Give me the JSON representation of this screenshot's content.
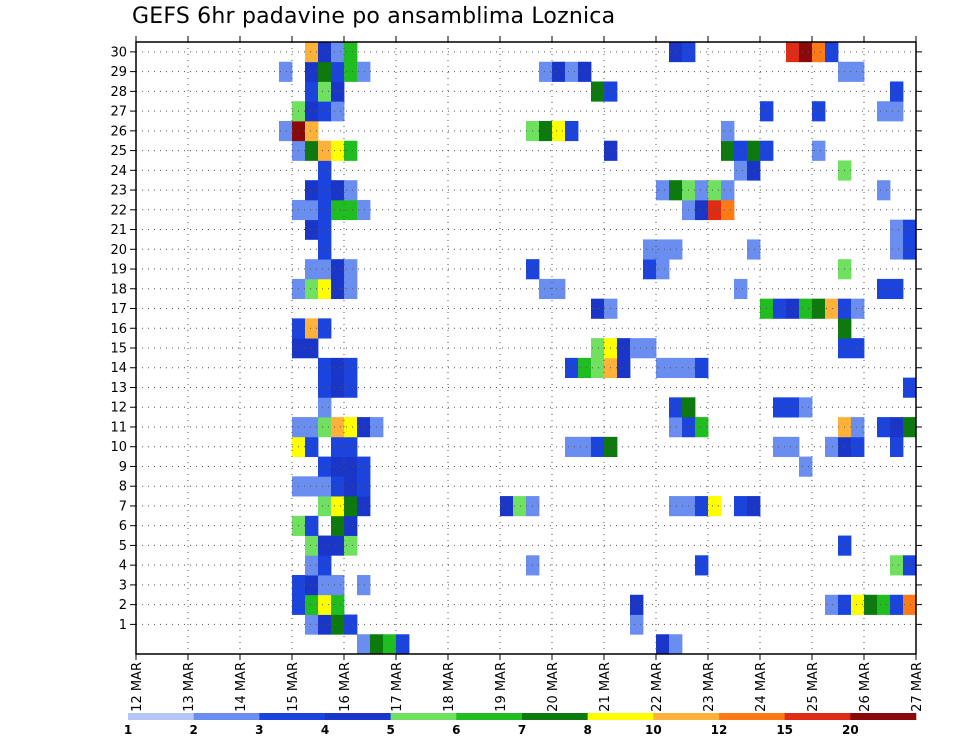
{
  "chart_data": {
    "type": "heatmap",
    "title": "GEFS 6hr padavine po ansamblima Loznica",
    "xlabel": "",
    "ylabel": "",
    "x_ticks": [
      "12 MAR",
      "13 MAR",
      "14 MAR",
      "15 MAR",
      "16 MAR",
      "17 MAR",
      "18 MAR",
      "19 MAR",
      "20 MAR",
      "21 MAR",
      "22 MAR",
      "23 MAR",
      "24 MAR",
      "25 MAR",
      "26 MAR",
      "27 MAR"
    ],
    "x_range_days": [
      0,
      15
    ],
    "y_ticks": [
      1,
      2,
      3,
      4,
      5,
      6,
      7,
      8,
      9,
      10,
      11,
      12,
      13,
      14,
      15,
      16,
      17,
      18,
      19,
      20,
      21,
      22,
      23,
      24,
      25,
      26,
      27,
      28,
      29,
      30
    ],
    "y_range": [
      0,
      30
    ],
    "time_step_hours": 6,
    "grid": "dotted",
    "colorbar": {
      "position": "bottom",
      "levels": [
        "1",
        "2",
        "3",
        "4",
        "5",
        "6",
        "7",
        "8",
        "10",
        "12",
        "15",
        "20"
      ],
      "colors": [
        "#b3c6f5",
        "#6a8ef0",
        "#1a44dd",
        "#1936c8",
        "#70e060",
        "#1fbd1f",
        "#0c7a0c",
        "#ffff00",
        "#ffb23a",
        "#ff7a14",
        "#e02c14",
        "#8a0a0a"
      ]
    },
    "series": [
      {
        "y": 0,
        "cells": [
          [
            16.25,
            1
          ],
          [
            16.5,
            6
          ],
          [
            16.75,
            5
          ],
          [
            17.0,
            2
          ],
          [
            22.0,
            3
          ],
          [
            22.25,
            1
          ]
        ]
      },
      {
        "y": 1,
        "cells": [
          [
            15.25,
            1
          ],
          [
            15.5,
            3
          ],
          [
            15.75,
            6
          ],
          [
            16.0,
            2
          ],
          [
            21.5,
            1
          ]
        ]
      },
      {
        "y": 2,
        "cells": [
          [
            15.0,
            2
          ],
          [
            15.25,
            5
          ],
          [
            15.5,
            7
          ],
          [
            15.75,
            5
          ],
          [
            21.5,
            3
          ],
          [
            25.25,
            1
          ],
          [
            25.5,
            2
          ],
          [
            25.75,
            7
          ],
          [
            26.0,
            6
          ],
          [
            26.25,
            5
          ],
          [
            26.5,
            2
          ],
          [
            26.75,
            9
          ]
        ]
      },
      {
        "y": 3,
        "cells": [
          [
            15.0,
            2
          ],
          [
            15.25,
            3
          ],
          [
            15.5,
            1
          ],
          [
            15.75,
            1
          ],
          [
            16.25,
            1
          ]
        ]
      },
      {
        "y": 4,
        "cells": [
          [
            15.25,
            1
          ],
          [
            15.5,
            2
          ],
          [
            19.5,
            1
          ],
          [
            22.75,
            2
          ],
          [
            26.5,
            4
          ],
          [
            26.75,
            2
          ]
        ]
      },
      {
        "y": 5,
        "cells": [
          [
            15.25,
            4
          ],
          [
            15.5,
            3
          ],
          [
            15.75,
            3
          ],
          [
            16.0,
            4
          ],
          [
            25.5,
            2
          ]
        ]
      },
      {
        "y": 6,
        "cells": [
          [
            15.0,
            4
          ],
          [
            15.25,
            2
          ],
          [
            15.75,
            6
          ],
          [
            16.0,
            3
          ]
        ]
      },
      {
        "y": 7,
        "cells": [
          [
            15.5,
            4
          ],
          [
            15.75,
            7
          ],
          [
            16.0,
            6
          ],
          [
            16.25,
            3
          ],
          [
            19.0,
            3
          ],
          [
            19.25,
            4
          ],
          [
            19.5,
            1
          ],
          [
            22.25,
            1
          ],
          [
            22.5,
            1
          ],
          [
            22.75,
            2
          ],
          [
            23.0,
            7
          ],
          [
            23.5,
            2
          ],
          [
            23.75,
            3
          ]
        ]
      },
      {
        "y": 8,
        "cells": [
          [
            15.0,
            1
          ],
          [
            15.25,
            1
          ],
          [
            15.5,
            1
          ],
          [
            15.75,
            2
          ],
          [
            16.0,
            3
          ],
          [
            16.25,
            2
          ]
        ]
      },
      {
        "y": 9,
        "cells": [
          [
            15.5,
            2
          ],
          [
            15.75,
            3
          ],
          [
            16.0,
            3
          ],
          [
            16.25,
            2
          ],
          [
            24.75,
            1
          ]
        ]
      },
      {
        "y": 10,
        "cells": [
          [
            15.0,
            7
          ],
          [
            15.25,
            2
          ],
          [
            15.75,
            2
          ],
          [
            16.0,
            2
          ],
          [
            20.25,
            1
          ],
          [
            20.5,
            1
          ],
          [
            20.75,
            2
          ],
          [
            21.0,
            6
          ],
          [
            24.25,
            1
          ],
          [
            24.5,
            1
          ],
          [
            25.25,
            1
          ],
          [
            25.5,
            3
          ],
          [
            25.75,
            2
          ],
          [
            26.5,
            2
          ]
        ]
      },
      {
        "y": 11,
        "cells": [
          [
            15.0,
            1
          ],
          [
            15.25,
            1
          ],
          [
            15.5,
            4
          ],
          [
            15.75,
            8
          ],
          [
            16.0,
            7
          ],
          [
            16.25,
            3
          ],
          [
            16.5,
            1
          ],
          [
            22.25,
            1
          ],
          [
            22.5,
            2
          ],
          [
            22.75,
            5
          ],
          [
            25.5,
            8
          ],
          [
            25.75,
            1
          ],
          [
            26.25,
            2
          ],
          [
            26.5,
            3
          ],
          [
            26.75,
            6
          ]
        ]
      },
      {
        "y": 12,
        "cells": [
          [
            15.5,
            1
          ],
          [
            22.25,
            2
          ],
          [
            22.5,
            6
          ],
          [
            24.25,
            2
          ],
          [
            24.5,
            2
          ],
          [
            24.75,
            1
          ]
        ]
      },
      {
        "y": 13,
        "cells": [
          [
            15.5,
            2
          ],
          [
            15.75,
            3
          ],
          [
            16.0,
            2
          ],
          [
            26.75,
            2
          ]
        ]
      },
      {
        "y": 14,
        "cells": [
          [
            15.5,
            2
          ],
          [
            15.75,
            3
          ],
          [
            16.0,
            2
          ],
          [
            20.25,
            2
          ],
          [
            20.5,
            5
          ],
          [
            20.75,
            4
          ],
          [
            21.0,
            8
          ],
          [
            21.25,
            3
          ],
          [
            22.0,
            1
          ],
          [
            22.25,
            1
          ],
          [
            22.5,
            1
          ],
          [
            22.75,
            2
          ]
        ]
      },
      {
        "y": 15,
        "cells": [
          [
            15.0,
            3
          ],
          [
            15.25,
            3
          ],
          [
            20.75,
            4
          ],
          [
            21.0,
            7
          ],
          [
            21.25,
            3
          ],
          [
            21.5,
            1
          ],
          [
            21.75,
            1
          ],
          [
            25.5,
            2
          ],
          [
            25.75,
            2
          ]
        ]
      },
      {
        "y": 16,
        "cells": [
          [
            15.0,
            2
          ],
          [
            15.25,
            8
          ],
          [
            15.5,
            2
          ],
          [
            25.5,
            6
          ]
        ]
      },
      {
        "y": 17,
        "cells": [
          [
            20.75,
            3
          ],
          [
            21.0,
            1
          ],
          [
            24.0,
            5
          ],
          [
            24.25,
            2
          ],
          [
            24.5,
            3
          ],
          [
            24.75,
            5
          ],
          [
            25.0,
            6
          ],
          [
            25.25,
            8
          ],
          [
            25.5,
            2
          ],
          [
            25.75,
            1
          ]
        ]
      },
      {
        "y": 18,
        "cells": [
          [
            15.0,
            1
          ],
          [
            15.25,
            4
          ],
          [
            15.5,
            7
          ],
          [
            15.75,
            3
          ],
          [
            16.0,
            1
          ],
          [
            19.75,
            1
          ],
          [
            20.0,
            1
          ],
          [
            23.5,
            1
          ],
          [
            26.25,
            2
          ],
          [
            26.5,
            2
          ]
        ]
      },
      {
        "y": 19,
        "cells": [
          [
            15.25,
            1
          ],
          [
            15.5,
            1
          ],
          [
            15.75,
            3
          ],
          [
            16.0,
            1
          ],
          [
            19.5,
            2
          ],
          [
            21.75,
            2
          ],
          [
            22.0,
            1
          ],
          [
            25.5,
            4
          ]
        ]
      },
      {
        "y": 20,
        "cells": [
          [
            15.5,
            2
          ],
          [
            21.75,
            1
          ],
          [
            22.0,
            1
          ],
          [
            22.25,
            1
          ],
          [
            23.75,
            1
          ],
          [
            26.5,
            1
          ],
          [
            26.75,
            2
          ]
        ]
      },
      {
        "y": 21,
        "cells": [
          [
            15.25,
            3
          ],
          [
            15.5,
            2
          ],
          [
            26.5,
            1
          ],
          [
            26.75,
            2
          ]
        ]
      },
      {
        "y": 22,
        "cells": [
          [
            15.0,
            1
          ],
          [
            15.25,
            1
          ],
          [
            15.5,
            2
          ],
          [
            15.75,
            5
          ],
          [
            16.0,
            5
          ],
          [
            16.25,
            1
          ],
          [
            22.5,
            1
          ],
          [
            22.75,
            3
          ],
          [
            23.0,
            10
          ],
          [
            23.25,
            9
          ]
        ]
      },
      {
        "y": 23,
        "cells": [
          [
            15.25,
            3
          ],
          [
            15.5,
            2
          ],
          [
            15.75,
            3
          ],
          [
            16.0,
            1
          ],
          [
            22.0,
            1
          ],
          [
            22.25,
            6
          ],
          [
            22.5,
            4
          ],
          [
            22.75,
            1
          ],
          [
            23.0,
            4
          ],
          [
            23.25,
            1
          ],
          [
            26.25,
            1
          ]
        ]
      },
      {
        "y": 24,
        "cells": [
          [
            15.5,
            2
          ],
          [
            23.5,
            1
          ],
          [
            23.75,
            3
          ],
          [
            25.5,
            4
          ]
        ]
      },
      {
        "y": 25,
        "cells": [
          [
            15.0,
            1
          ],
          [
            15.25,
            6
          ],
          [
            15.5,
            8
          ],
          [
            15.75,
            7
          ],
          [
            16.0,
            5
          ],
          [
            21.0,
            3
          ],
          [
            23.25,
            6
          ],
          [
            23.5,
            2
          ],
          [
            23.75,
            6
          ],
          [
            24.0,
            2
          ],
          [
            25.0,
            1
          ]
        ]
      },
      {
        "y": 26,
        "cells": [
          [
            14.75,
            1
          ],
          [
            15.0,
            11
          ],
          [
            15.25,
            8
          ],
          [
            19.5,
            4
          ],
          [
            19.75,
            6
          ],
          [
            20.0,
            7
          ],
          [
            20.25,
            2
          ],
          [
            23.25,
            1
          ]
        ]
      },
      {
        "y": 27,
        "cells": [
          [
            15.0,
            4
          ],
          [
            15.25,
            3
          ],
          [
            15.5,
            2
          ],
          [
            15.75,
            1
          ],
          [
            24.0,
            2
          ],
          [
            25.0,
            2
          ],
          [
            26.25,
            1
          ],
          [
            26.5,
            1
          ]
        ]
      },
      {
        "y": 28,
        "cells": [
          [
            15.25,
            2
          ],
          [
            15.5,
            4
          ],
          [
            15.75,
            3
          ],
          [
            20.75,
            6
          ],
          [
            21.0,
            2
          ],
          [
            26.5,
            2
          ]
        ]
      },
      {
        "y": 29,
        "cells": [
          [
            14.75,
            1
          ],
          [
            15.25,
            3
          ],
          [
            15.5,
            6
          ],
          [
            15.75,
            2
          ],
          [
            16.0,
            5
          ],
          [
            16.25,
            1
          ],
          [
            19.75,
            1
          ],
          [
            20.0,
            3
          ],
          [
            20.25,
            1
          ],
          [
            20.5,
            3
          ],
          [
            25.5,
            1
          ],
          [
            25.75,
            1
          ]
        ]
      },
      {
        "y": 30,
        "cells": [
          [
            15.25,
            8
          ],
          [
            15.5,
            3
          ],
          [
            15.75,
            1
          ],
          [
            16.0,
            5
          ],
          [
            22.25,
            3
          ],
          [
            22.5,
            2
          ],
          [
            24.5,
            10
          ],
          [
            24.75,
            11
          ],
          [
            25.0,
            9
          ],
          [
            25.25,
            2
          ]
        ]
      }
    ]
  }
}
